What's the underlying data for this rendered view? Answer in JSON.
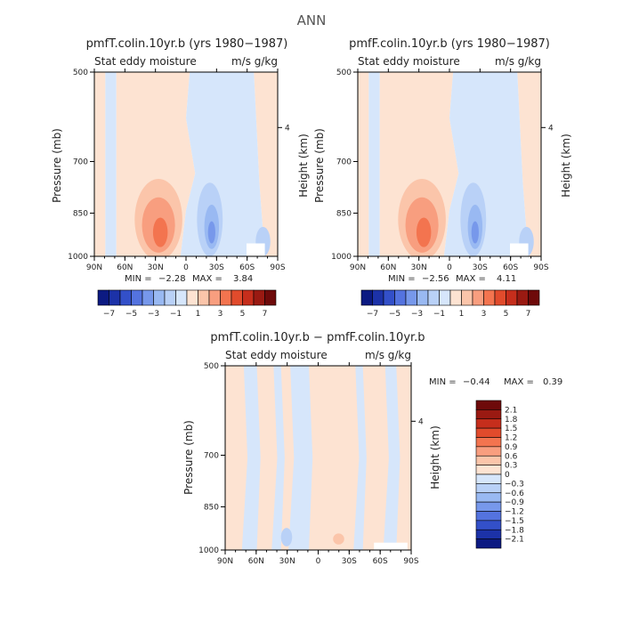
{
  "main_title": "ANN",
  "colors": {
    "background": "#ffffff",
    "positive_shades": [
      "#fde3d2",
      "#fbc5aa",
      "#f89e7f",
      "#f3744f",
      "#e14b2c",
      "#c62e1c",
      "#9a1a12",
      "#6e0a0a"
    ],
    "negative_shades": [
      "#d6e6fb",
      "#b9d1f7",
      "#99b9f2",
      "#7798eb",
      "#5473df",
      "#3350c9",
      "#1c32a8",
      "#0c1a82"
    ]
  },
  "chart_data": [
    {
      "type": "contour",
      "title": "pmfT.colin.10yr.b (yrs 1980−1987)",
      "subtitle_left": "Stat eddy moisture",
      "subtitle_right": "m/s g/kg",
      "ylabel": "Pressure (mb)",
      "ylabel_right": "Height (km)",
      "x_ticks": [
        "90N",
        "60N",
        "30N",
        "0",
        "30S",
        "60S",
        "90S"
      ],
      "y_ticks": [
        "500",
        "700",
        "850",
        "1000"
      ],
      "y_right_ticks": [
        "4"
      ],
      "min_label": "MIN =",
      "min": "−2.28",
      "max_label": "MAX =",
      "max": "3.84",
      "colorbar_labels": [
        "−7",
        "−5",
        "−3",
        "−1",
        "1",
        "3",
        "5",
        "7"
      ]
    },
    {
      "type": "contour",
      "title": "pmfF.colin.10yr.b (yrs 1980−1987)",
      "subtitle_left": "Stat eddy moisture",
      "subtitle_right": "m/s g/kg",
      "ylabel": "Pressure (mb)",
      "ylabel_right": "Height (km)",
      "x_ticks": [
        "90N",
        "60N",
        "30N",
        "0",
        "30S",
        "60S",
        "90S"
      ],
      "y_ticks": [
        "500",
        "700",
        "850",
        "1000"
      ],
      "y_right_ticks": [
        "4"
      ],
      "min_label": "MIN =",
      "min": "−2.56",
      "max_label": "MAX =",
      "max": "4.11",
      "colorbar_labels": [
        "−7",
        "−5",
        "−3",
        "−1",
        "1",
        "3",
        "5",
        "7"
      ]
    },
    {
      "type": "contour",
      "title": "pmfT.colin.10yr.b − pmfF.colin.10yr.b",
      "subtitle_left": "Stat eddy moisture",
      "subtitle_right": "m/s g/kg",
      "ylabel": "Pressure (mb)",
      "ylabel_right": "Height (km)",
      "x_ticks": [
        "90N",
        "60N",
        "30N",
        "0",
        "30S",
        "60S",
        "90S"
      ],
      "y_ticks": [
        "500",
        "700",
        "850",
        "1000"
      ],
      "y_right_ticks": [
        "4"
      ],
      "min_label": "MIN =",
      "min": "−0.44",
      "max_label": "MAX =",
      "max": "0.39",
      "colorbar_labels": [
        "2.1",
        "1.8",
        "1.5",
        "1.2",
        "0.9",
        "0.6",
        "0.3",
        "0",
        "−0.3",
        "−0.6",
        "−0.9",
        "−1.2",
        "−1.5",
        "−1.8",
        "−2.1"
      ]
    }
  ]
}
